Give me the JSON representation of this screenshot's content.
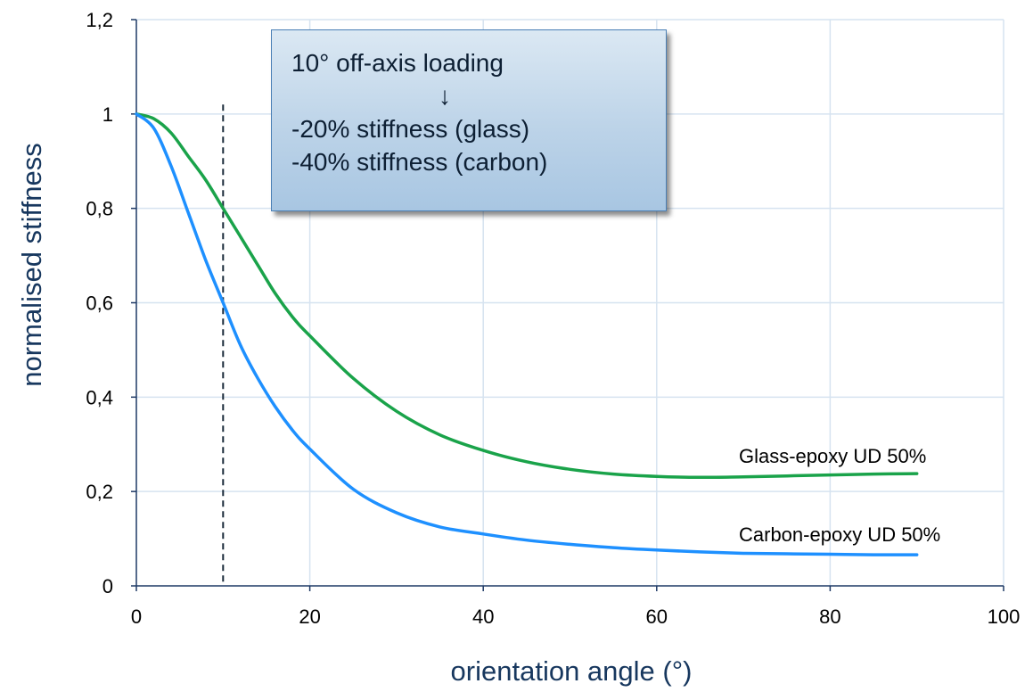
{
  "chart_data": {
    "type": "line",
    "xlabel": "orientation angle (°)",
    "ylabel": "normalised stiffness",
    "xlim": [
      0,
      100
    ],
    "ylim": [
      0,
      1.2
    ],
    "x_ticks": [
      "0",
      "20",
      "40",
      "60",
      "80",
      "100"
    ],
    "y_ticks": [
      "0",
      "0,2",
      "0,4",
      "0,6",
      "0,8",
      "1",
      "1,2"
    ],
    "grid": true,
    "series": [
      {
        "name": "Glass-epoxy UD 50%",
        "color": "#1aa34a",
        "x": [
          0,
          2,
          4,
          6,
          8,
          10,
          12,
          14,
          16,
          18,
          20,
          25,
          30,
          35,
          40,
          45,
          50,
          55,
          60,
          65,
          70,
          75,
          80,
          85,
          90
        ],
        "y": [
          1.0,
          0.99,
          0.96,
          0.91,
          0.86,
          0.8,
          0.74,
          0.68,
          0.62,
          0.57,
          0.53,
          0.44,
          0.37,
          0.32,
          0.287,
          0.263,
          0.247,
          0.237,
          0.232,
          0.23,
          0.231,
          0.233,
          0.235,
          0.237,
          0.238
        ]
      },
      {
        "name": "Carbon-epoxy UD 50%",
        "color": "#1e90ff",
        "x": [
          0,
          2,
          4,
          6,
          8,
          10,
          12,
          14,
          16,
          18,
          20,
          25,
          30,
          35,
          40,
          45,
          50,
          55,
          60,
          65,
          70,
          75,
          80,
          85,
          90
        ],
        "y": [
          1.0,
          0.97,
          0.89,
          0.79,
          0.69,
          0.6,
          0.51,
          0.44,
          0.38,
          0.33,
          0.29,
          0.205,
          0.155,
          0.125,
          0.11,
          0.097,
          0.088,
          0.081,
          0.076,
          0.072,
          0.069,
          0.068,
          0.067,
          0.066,
          0.066
        ]
      }
    ],
    "reference_line": {
      "x": 10,
      "y_top": 1.02,
      "style": "dashed"
    },
    "annotation": {
      "lines": [
        "10° off-axis loading",
        "↓",
        "-20% stiffness (glass)",
        "-40% stiffness (carbon)"
      ]
    },
    "series_labels": [
      "Glass-epoxy UD 50%",
      "Carbon-epoxy UD 50%"
    ]
  }
}
